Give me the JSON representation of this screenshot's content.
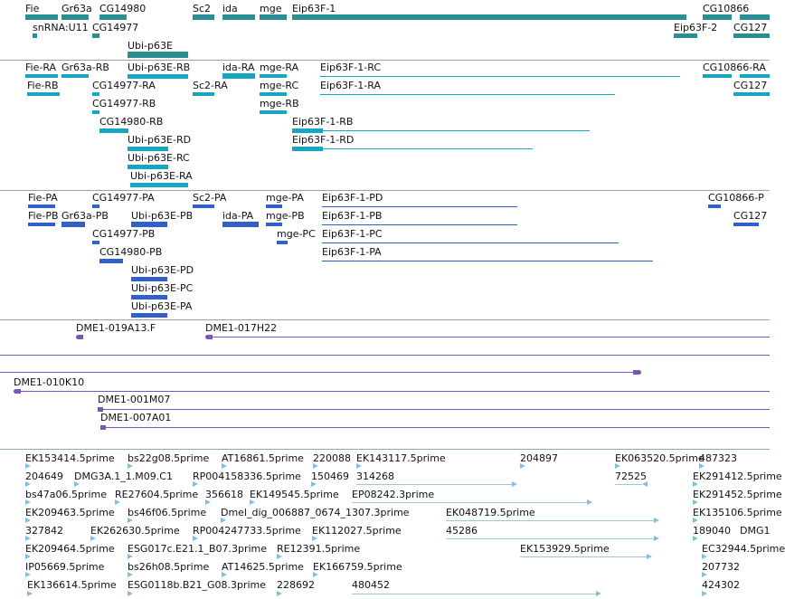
{
  "colors": {
    "gene": "#2a8f93",
    "transcript": "#15a7c2",
    "polypeptide": "#3060c8",
    "clone": "#7a55b8",
    "est": "#7ec0df",
    "separator": "#8fa7b5"
  },
  "genes": {
    "labels": [
      "Fie",
      "Gr63a",
      "CG14980",
      "Sc2",
      "ida",
      "mge",
      "Eip63F-1",
      "CG10866",
      "snRNA:U11",
      "CG14977",
      "Eip63F-2",
      "CG127",
      "Ubi-p63E"
    ]
  },
  "transcripts": {
    "labels": [
      "Fie-RA",
      "Gr63a-RB",
      "Ubi-p63E-RB",
      "ida-RA",
      "mge-RA",
      "Eip63F-1-RC",
      "CG10866-RA",
      "Fie-RB",
      "CG14977-RA",
      "Sc2-RA",
      "mge-RC",
      "Eip63F-1-RA",
      "CG127",
      "CG14977-RB",
      "mge-RB",
      "CG14980-RB",
      "Eip63F-1-RB",
      "Ubi-p63E-RD",
      "Eip63F-1-RD",
      "Ubi-p63E-RC",
      "Ubi-p63E-RA"
    ]
  },
  "polypeptides": {
    "labels": [
      "Fie-PA",
      "CG14977-PA",
      "Sc2-PA",
      "mge-PA",
      "Eip63F-1-PD",
      "CG10866-P",
      "Fie-PB",
      "Gr63a-PB",
      "Ubi-p63E-PB",
      "ida-PA",
      "mge-PB",
      "Eip63F-1-PB",
      "CG127",
      "CG14977-PB",
      "mge-PC",
      "Eip63F-1-PC",
      "CG14980-PB",
      "Eip63F-1-PA",
      "Ubi-p63E-PD",
      "Ubi-p63E-PC",
      "Ubi-p63E-PA"
    ]
  },
  "clones": {
    "labels": [
      "DME1-019A13.F",
      "DME1-017H22",
      "DME1-010K10",
      "DME1-001M07",
      "DME1-007A01"
    ]
  },
  "ests": {
    "labels": [
      "EK153414.5prime",
      "bs22g08.5prime",
      "AT16861.5prime",
      "220088",
      "EK143117.5prime",
      "204897",
      "EK063520.5prime",
      "487323",
      "204649",
      "DMG3A.1_1.M09.C1",
      "RP004158336.5prime",
      "150469",
      "314268",
      "72525",
      "EK291412.5prime",
      "bs47a06.5prime",
      "RE27604.5prime",
      "356618",
      "EK149545.5prime",
      "EP08242.3prime",
      "EK291452.5prime",
      "EK209463.5prime",
      "bs46f06.5prime",
      "Dmel_dig_006887_0674_1307.3prime",
      "EK048719.5prime",
      "EK135106.5prime",
      "327842",
      "EK262630.5prime",
      "RP004247733.5prime",
      "EK112027.5prime",
      "45286",
      "189040",
      "DMG1",
      "EK209464.5prime",
      "ESG017c.E21.1_B07.3prime",
      "RE12391.5prime",
      "EK153929.5prime",
      "EC32944.5prime",
      "IP05669.5prime",
      "bs26h08.5prime",
      "AT14625.5prime",
      "EK166759.5prime",
      "207732",
      "EK136614.5prime",
      "ESG0118b.B21_G08.3prime",
      "228692",
      "480452",
      "424302"
    ]
  }
}
